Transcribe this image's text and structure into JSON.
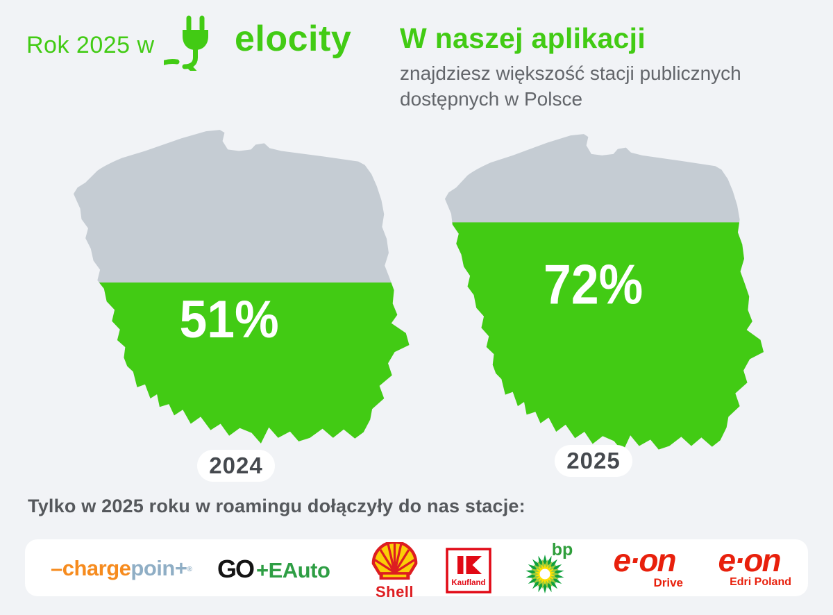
{
  "infographic": {
    "brand_prefix": "Rok 2025 w",
    "brand_name": "elocity",
    "headline": "W naszej aplikacji",
    "subheadline_line1": "znajdziesz większość stacji publicznych",
    "subheadline_line2": "dostępnych w Polsce",
    "footer_text": "Tylko w 2025 roku w roamingu dołączyły do nas stacje:"
  },
  "chart_data": {
    "type": "bar",
    "variant": "poland-map-fill-pictogram",
    "title": "W naszej aplikacji znajdziesz większość stacji publicznych dostępnych w Polsce",
    "categories": [
      "2024",
      "2025"
    ],
    "values": [
      51,
      72
    ],
    "unit": "%",
    "value_labels": [
      "51%",
      "72%"
    ],
    "ylim": [
      0,
      100
    ],
    "fill_color": "#42CB14",
    "empty_color": "#C5CCD3",
    "legend_position": "none",
    "grid": false
  },
  "maps": [
    {
      "percent_label": "51%",
      "fill_percent": 51,
      "year_label": "2024"
    },
    {
      "percent_label": "72%",
      "fill_percent": 72,
      "year_label": "2025"
    }
  ],
  "partners": [
    {
      "name": "ChargePoint",
      "part1": "–charge",
      "part2": "poin+",
      "reg": "®"
    },
    {
      "name": "GO+EAuto",
      "part1": "GO",
      "part2": "+EAuto"
    },
    {
      "name": "Shell",
      "label": "Shell"
    },
    {
      "name": "Kaufland",
      "label": "Kaufland"
    },
    {
      "name": "bp",
      "label": "bp"
    },
    {
      "name": "E.ON Drive",
      "brand": "e·on",
      "sub": "Drive"
    },
    {
      "name": "E.ON Edri Poland",
      "brand": "e·on",
      "sub": "Edri Poland"
    }
  ],
  "colors": {
    "background": "#F1F3F6",
    "brand_green": "#42CB14",
    "map_empty_gray": "#C5CCD3",
    "text_gray": "#63666B",
    "text_dark": "#55585C",
    "pill_text": "#45494E",
    "chargepoint_orange": "#F68B1E",
    "chargepoint_blue": "#8FAEC5",
    "go_black": "#141414",
    "eauto_green": "#2E9E44",
    "shell_red": "#DD1D21",
    "shell_yellow": "#FBCE07",
    "kaufland_red": "#E10915",
    "bp_green": "#0FA03C",
    "bp_light_green": "#9DCB3B",
    "bp_yellow": "#FFE000",
    "eon_red": "#E8200C"
  }
}
